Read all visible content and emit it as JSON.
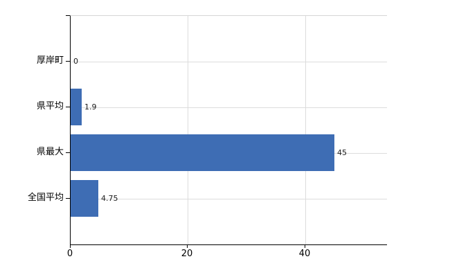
{
  "chart_data": {
    "type": "bar",
    "orientation": "horizontal",
    "title": "",
    "categories": [
      "厚岸町",
      "県平均",
      "県最大",
      "全国平均"
    ],
    "values": [
      0,
      1.9,
      45,
      4.75
    ],
    "value_labels": [
      "0",
      "1.9",
      "45",
      "4.75"
    ],
    "x_ticks": [
      {
        "value": 0,
        "label": "0"
      },
      {
        "value": 20,
        "label": "20"
      },
      {
        "value": 40,
        "label": "40"
      }
    ],
    "xlim": [
      0,
      54
    ],
    "grid": true,
    "legend": null,
    "colors": {
      "bar": "#3e6db4",
      "grid": "#dcdcdc",
      "plot_top_border": "#d6d6d6",
      "axis": "#000000",
      "text": "#000000",
      "value_text": "#1a1a1a"
    }
  }
}
